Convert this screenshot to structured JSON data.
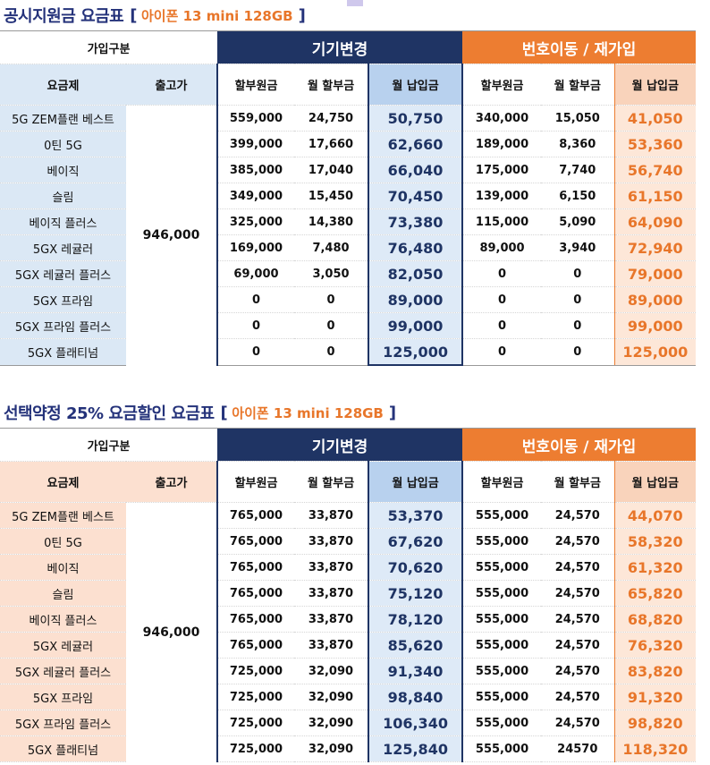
{
  "table1": {
    "title": "공시지원금 요금표",
    "phone": "아이폰 13 mini 128GB",
    "group_label": "가입구분",
    "group_device": "기기변경",
    "group_port": "번호이동 / 재가입",
    "col_plan": "요금제",
    "col_price": "출고가",
    "col_installment_principal": "할부원금",
    "col_monthly_installment": "월 할부금",
    "col_monthly_payment": "월 납입금",
    "price": "946,000",
    "rows": [
      {
        "plan": "5G ZEM플랜 베스트",
        "d_principal": "559,000",
        "d_monthly": "24,750",
        "d_pay": "50,750",
        "p_principal": "340,000",
        "p_monthly": "15,050",
        "p_pay": "41,050"
      },
      {
        "plan": "0틴 5G",
        "d_principal": "399,000",
        "d_monthly": "17,660",
        "d_pay": "62,660",
        "p_principal": "189,000",
        "p_monthly": "8,360",
        "p_pay": "53,360"
      },
      {
        "plan": "베이직",
        "d_principal": "385,000",
        "d_monthly": "17,040",
        "d_pay": "66,040",
        "p_principal": "175,000",
        "p_monthly": "7,740",
        "p_pay": "56,740"
      },
      {
        "plan": "슬림",
        "d_principal": "349,000",
        "d_monthly": "15,450",
        "d_pay": "70,450",
        "p_principal": "139,000",
        "p_monthly": "6,150",
        "p_pay": "61,150"
      },
      {
        "plan": "베이직 플러스",
        "d_principal": "325,000",
        "d_monthly": "14,380",
        "d_pay": "73,380",
        "p_principal": "115,000",
        "p_monthly": "5,090",
        "p_pay": "64,090"
      },
      {
        "plan": "5GX 레귤러",
        "d_principal": "169,000",
        "d_monthly": "7,480",
        "d_pay": "76,480",
        "p_principal": "89,000",
        "p_monthly": "3,940",
        "p_pay": "72,940"
      },
      {
        "plan": "5GX 레귤러 플러스",
        "d_principal": "69,000",
        "d_monthly": "3,050",
        "d_pay": "82,050",
        "p_principal": "0",
        "p_monthly": "0",
        "p_pay": "79,000"
      },
      {
        "plan": "5GX 프라임",
        "d_principal": "0",
        "d_monthly": "0",
        "d_pay": "89,000",
        "p_principal": "0",
        "p_monthly": "0",
        "p_pay": "89,000"
      },
      {
        "plan": "5GX 프라임 플러스",
        "d_principal": "0",
        "d_monthly": "0",
        "d_pay": "99,000",
        "p_principal": "0",
        "p_monthly": "0",
        "p_pay": "99,000"
      },
      {
        "plan": "5GX 플래티넘",
        "d_principal": "0",
        "d_monthly": "0",
        "d_pay": "125,000",
        "p_principal": "0",
        "p_monthly": "0",
        "p_pay": "125,000"
      }
    ]
  },
  "table2": {
    "title": "선택약정 25% 요금할인 요금표",
    "phone": "아이폰 13 mini 128GB",
    "group_label": "가입구분",
    "group_device": "기기변경",
    "group_port": "번호이동 / 재가입",
    "col_plan": "요금제",
    "col_price": "출고가",
    "col_installment_principal": "할부원금",
    "col_monthly_installment": "월 할부금",
    "col_monthly_payment": "월 납입금",
    "price": "946,000",
    "rows": [
      {
        "plan": "5G ZEM플랜 베스트",
        "d_principal": "765,000",
        "d_monthly": "33,870",
        "d_pay": "53,370",
        "p_principal": "555,000",
        "p_monthly": "24,570",
        "p_pay": "44,070"
      },
      {
        "plan": "0틴 5G",
        "d_principal": "765,000",
        "d_monthly": "33,870",
        "d_pay": "67,620",
        "p_principal": "555,000",
        "p_monthly": "24,570",
        "p_pay": "58,320"
      },
      {
        "plan": "베이직",
        "d_principal": "765,000",
        "d_monthly": "33,870",
        "d_pay": "70,620",
        "p_principal": "555,000",
        "p_monthly": "24,570",
        "p_pay": "61,320"
      },
      {
        "plan": "슬림",
        "d_principal": "765,000",
        "d_monthly": "33,870",
        "d_pay": "75,120",
        "p_principal": "555,000",
        "p_monthly": "24,570",
        "p_pay": "65,820"
      },
      {
        "plan": "베이직 플러스",
        "d_principal": "765,000",
        "d_monthly": "33,870",
        "d_pay": "78,120",
        "p_principal": "555,000",
        "p_monthly": "24,570",
        "p_pay": "68,820"
      },
      {
        "plan": "5GX 레귤러",
        "d_principal": "765,000",
        "d_monthly": "33,870",
        "d_pay": "85,620",
        "p_principal": "555,000",
        "p_monthly": "24,570",
        "p_pay": "76,320"
      },
      {
        "plan": "5GX 레귤러 플러스",
        "d_principal": "725,000",
        "d_monthly": "32,090",
        "d_pay": "91,340",
        "p_principal": "555,000",
        "p_monthly": "24,570",
        "p_pay": "83,820"
      },
      {
        "plan": "5GX 프라임",
        "d_principal": "725,000",
        "d_monthly": "32,090",
        "d_pay": "98,840",
        "p_principal": "555,000",
        "p_monthly": "24,570",
        "p_pay": "91,320"
      },
      {
        "plan": "5GX 프라임 플러스",
        "d_principal": "725,000",
        "d_monthly": "32,090",
        "d_pay": "106,340",
        "p_principal": "555,000",
        "p_monthly": "24,570",
        "p_pay": "98,820"
      },
      {
        "plan": "5GX 플래티넘",
        "d_principal": "725,000",
        "d_monthly": "32,090",
        "d_pay": "125,840",
        "p_principal": "555,000",
        "p_monthly": "24570",
        "p_pay": "118,320"
      }
    ]
  },
  "colors": {
    "navy": "#1f3464",
    "orange": "#ed7d31",
    "light_blue": "#dbe8f5",
    "light_orange": "#fce0d0"
  }
}
